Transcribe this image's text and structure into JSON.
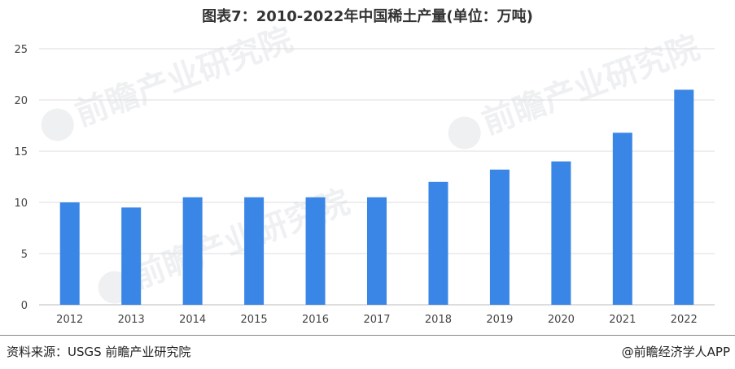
{
  "chart_data": {
    "type": "bar",
    "title": "图表7：2010-2022年中国稀土产量(单位：万吨)",
    "categories": [
      "2012",
      "2013",
      "2014",
      "2015",
      "2016",
      "2017",
      "2018",
      "2019",
      "2020",
      "2021",
      "2022"
    ],
    "values": [
      10,
      9.5,
      10.5,
      10.5,
      10.5,
      10.5,
      12,
      13.2,
      14,
      16.8,
      21
    ],
    "ylim": [
      0,
      25
    ],
    "yticks": [
      0,
      5,
      10,
      15,
      20,
      25
    ],
    "grid": true,
    "bar_color": "#3a86e6"
  },
  "footer": {
    "source": "资料来源：USGS 前瞻产业研究院",
    "brand": "@前瞻经济学人APP"
  },
  "watermark": "前瞻产业研究院"
}
